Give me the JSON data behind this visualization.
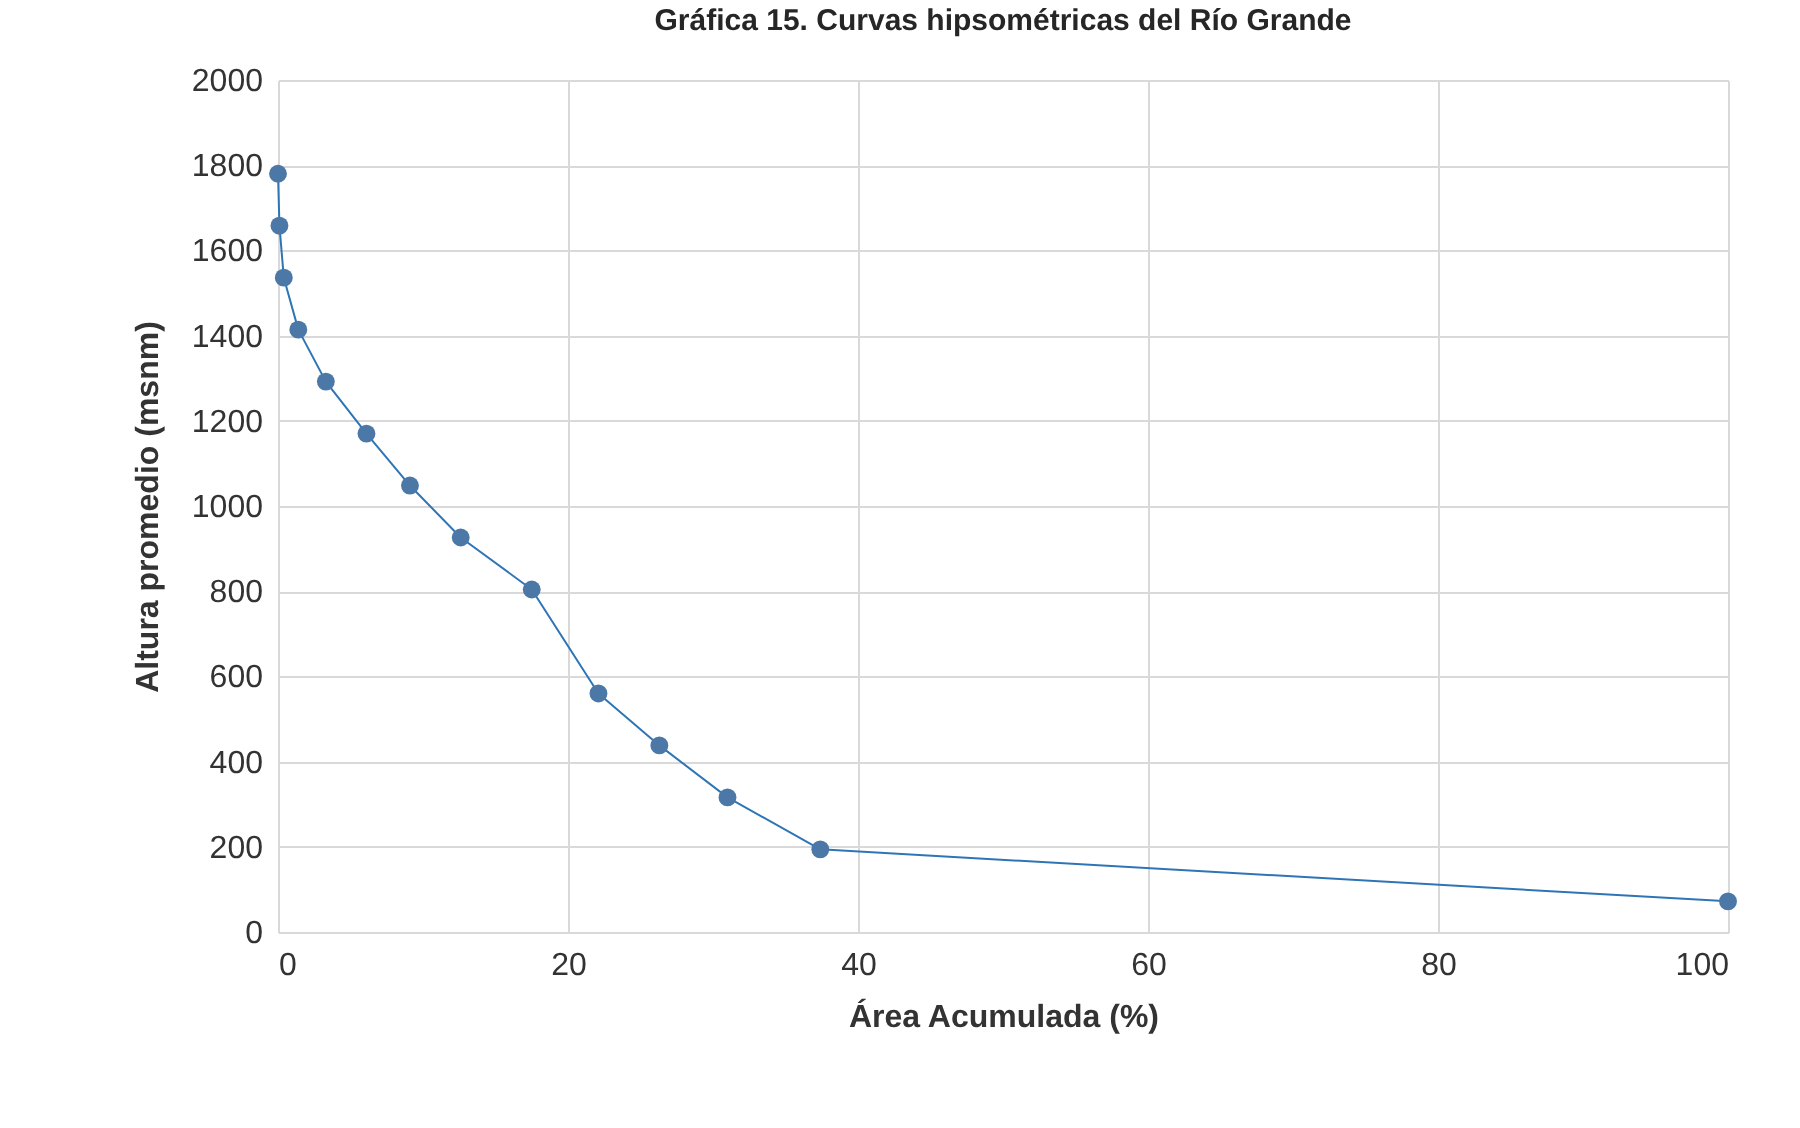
{
  "chart_data": {
    "type": "line",
    "title": "Gráfica 15. Curvas hipsométricas del Río Grande",
    "xlabel": "Área Acumulada (%)",
    "ylabel": "Altura promedio (msnm)",
    "x": [
      0,
      0.1,
      0.4,
      1.4,
      3.3,
      6.1,
      9.1,
      12.6,
      17.5,
      22.1,
      26.3,
      31.0,
      37.4,
      100
    ],
    "series": [
      {
        "color": "#2e75b6",
        "values": [
          1780,
          1658,
          1536,
          1414,
          1292,
          1170,
          1048,
          926,
          804,
          560,
          438,
          316,
          194,
          72
        ]
      }
    ],
    "xlim": [
      0,
      100
    ],
    "xticks": [
      0,
      20,
      40,
      60,
      80,
      100
    ],
    "ylim": [
      0,
      2000
    ],
    "yticks": [
      0,
      200,
      400,
      600,
      800,
      1000,
      1200,
      1400,
      1600,
      1800,
      2000
    ],
    "grid": true,
    "marker": "circle",
    "line_style": "solid"
  }
}
